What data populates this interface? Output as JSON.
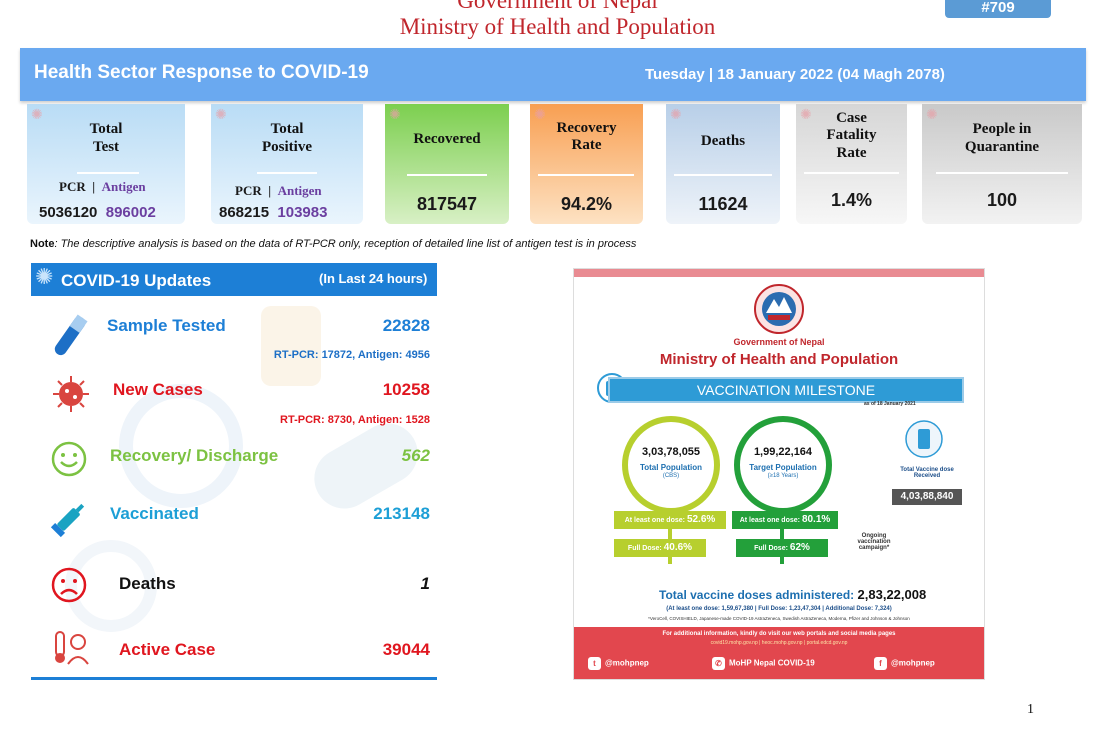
{
  "header": {
    "government": "Government of Nepal",
    "ministry": "Ministry of Health and Population",
    "page_id": "#709"
  },
  "banner": {
    "title": "Health Sector Response to COVID-19",
    "date": "Tuesday | 18 January 2022 (04 Magh 2078)"
  },
  "cards": {
    "total_test": {
      "label1": "Total",
      "label2": "Test",
      "pcr_label": "PCR",
      "sep": "|",
      "antigen_label": "Antigen",
      "pcr": "5036120",
      "antigen": "896002"
    },
    "total_positive": {
      "label1": "Total",
      "label2": "Positive",
      "pcr_label": "PCR",
      "sep": "|",
      "antigen_label": "Antigen",
      "pcr": "868215",
      "antigen": "103983"
    },
    "recovered": {
      "label": "Recovered",
      "value": "817547"
    },
    "recovery_rate": {
      "label1": "Recovery",
      "label2": "Rate",
      "value": "94.2%"
    },
    "deaths": {
      "label": "Deaths",
      "value": "11624"
    },
    "case_fatality": {
      "label1": "Case",
      "label2": "Fatality",
      "label3": "Rate",
      "value": "1.4%"
    },
    "quarantine": {
      "label1": "People in",
      "label2": "Quarantine",
      "value": "100"
    },
    "colors": {
      "test": "#b9dcf5",
      "positive": "#b9dcf5",
      "recovered": "#8fd468",
      "recovery_rate": "#f8ad66",
      "deaths": "#b8cfe8",
      "fatality": "#d9d9d9",
      "quarantine": "#cfcfcf"
    }
  },
  "note": {
    "prefix": "Note",
    "text": ": The descriptive analysis is based on the data of RT-PCR only, reception of detailed line list of antigen test is in process"
  },
  "updates": {
    "title": "COVID-19 Updates",
    "subtitle": "(In Last 24 hours)",
    "rows": [
      {
        "label": "Sample Tested",
        "value": "22828",
        "detail": "RT-PCR: 17872, Antigen: 4956",
        "icon": "test-tube-icon"
      },
      {
        "label": "New Cases",
        "value": "10258",
        "detail": "RT-PCR: 8730, Antigen: 1528",
        "icon": "virus-icon"
      },
      {
        "label": "Recovery/ Discharge",
        "value": "562",
        "icon": "smiley-icon"
      },
      {
        "label": "Vaccinated",
        "value": "213148",
        "icon": "syringe-icon"
      },
      {
        "label": "Deaths",
        "value": "1",
        "icon": "sad-face-icon"
      },
      {
        "label": "Active Case",
        "value": "39044",
        "icon": "thermometer-icon"
      }
    ]
  },
  "infographic": {
    "gov": "Government of Nepal",
    "ministry": "Ministry of Health and Population",
    "milestone": "VACCINATION MILESTONE",
    "as_of": "as of 18 January 2021",
    "total_population": "3,03,78,055",
    "total_population_label": "Total Population",
    "total_population_src": "(CBS)",
    "target_population": "1,99,22,164",
    "target_population_label": "Target Population",
    "target_population_age": "(≥18 Years)",
    "total_dose_received_label": "Total Vaccine dose Received",
    "total_dose_received": "4,03,88,840",
    "left_one_dose_label": "At least one dose:",
    "left_one_dose": "52.6%",
    "left_full_label": "Full Dose:",
    "left_full": "40.6%",
    "right_one_dose_label": "At least one dose:",
    "right_one_dose": "80.1%",
    "right_full_label": "Full Dose:",
    "right_full": "62%",
    "ongoing": "Ongoing vaccination campaign*",
    "total_admin_label": "Total vaccine doses administered:",
    "total_admin": "2,83,22,008",
    "breakdown": "(At least one dose: 1,59,67,380 | Full Dose: 1,23,47,304 | Additional Dose: 7,324)",
    "footnote": "*VeroCell, COVISHIELD, Japanese-made COVID-19 AstraZeneca, Swedish AstraZeneca, Moderna, Pfizer and Johnson & Johnson",
    "more_info": "For additional information, kindly do visit our web portals and social media pages",
    "links": "covid19.mohp.gov.np | heoc.mohp.gov.np | portal.edcd.gov.np",
    "twitter": "@mohpnep",
    "viber": "MoHP Nepal COVID-19",
    "facebook": "@mohpnep"
  },
  "page_number": "1"
}
